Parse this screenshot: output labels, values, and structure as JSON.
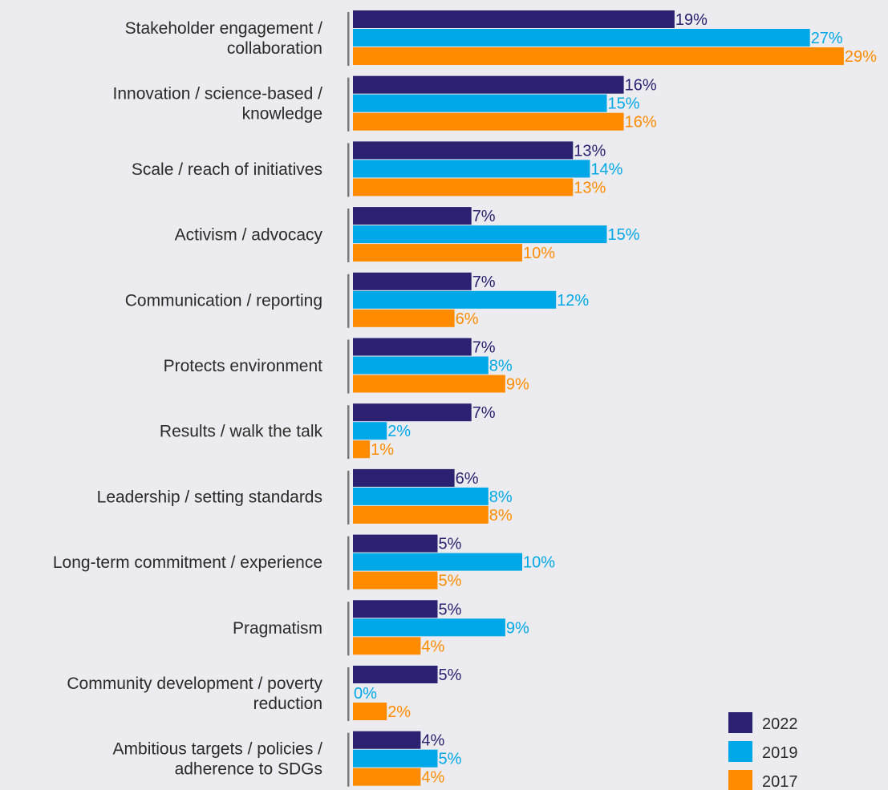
{
  "chart_data": {
    "type": "bar",
    "orientation": "horizontal",
    "categories": [
      [
        "Stakeholder engagement /",
        "collaboration"
      ],
      [
        "Innovation / science-based /",
        "knowledge"
      ],
      [
        "Scale / reach of initiatives"
      ],
      [
        "Activism / advocacy"
      ],
      [
        "Communication / reporting"
      ],
      [
        "Protects environment"
      ],
      [
        "Results / walk the talk"
      ],
      [
        "Leadership / setting standards"
      ],
      [
        "Long-term commitment / experience"
      ],
      [
        "Pragmatism"
      ],
      [
        "Community development / poverty",
        "reduction"
      ],
      [
        "Ambitious targets / policies /",
        "adherence to SDGs"
      ]
    ],
    "series": [
      {
        "name": "2022",
        "color": "#2b2171",
        "labelColor": "#2b2171",
        "values": [
          19,
          16,
          13,
          7,
          7,
          7,
          7,
          6,
          5,
          5,
          5,
          4
        ]
      },
      {
        "name": "2019",
        "color": "#00a8e8",
        "labelColor": "#00a8e8",
        "values": [
          27,
          15,
          14,
          15,
          12,
          8,
          2,
          8,
          10,
          9,
          0,
          5
        ]
      },
      {
        "name": "2017",
        "color": "#ff8c00",
        "labelColor": "#ff8c00",
        "values": [
          29,
          16,
          13,
          10,
          6,
          9,
          1,
          8,
          5,
          4,
          2,
          4
        ]
      }
    ],
    "value_suffix": "%",
    "xlim": [
      0,
      30
    ],
    "grid": false,
    "legend_position": "bottom-right"
  }
}
